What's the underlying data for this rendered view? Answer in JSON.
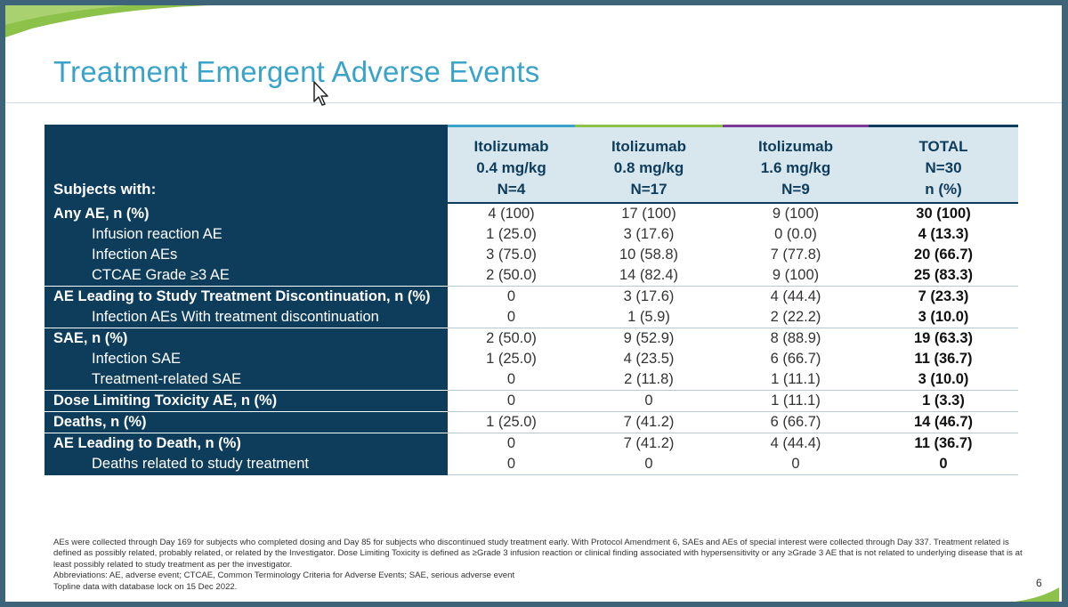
{
  "slide": {
    "title": "Treatment Emergent Adverse Events",
    "page_number": "6"
  },
  "table": {
    "header": {
      "label": "Subjects with:",
      "columns": [
        {
          "line1": "Itolizumab",
          "line2": "0.4 mg/kg",
          "line3": "N=4"
        },
        {
          "line1": "Itolizumab",
          "line2": "0.8 mg/kg",
          "line3": "N=17"
        },
        {
          "line1": "Itolizumab",
          "line2": "1.6 mg/kg",
          "line3": "N=9"
        },
        {
          "line1": "TOTAL",
          "line2": "N=30",
          "line3": "n (%)"
        }
      ]
    },
    "rows": [
      {
        "label": "Any AE, n (%)",
        "values": [
          "4 (100)",
          "17 (100)",
          "9 (100)",
          "30 (100)"
        ]
      },
      {
        "label": "Infusion reaction AE",
        "values": [
          "1 (25.0)",
          "3 (17.6)",
          "0 (0.0)",
          "4 (13.3)"
        ]
      },
      {
        "label": "Infection AEs",
        "values": [
          "3 (75.0)",
          "10 (58.8)",
          "7 (77.8)",
          "20 (66.7)"
        ]
      },
      {
        "label": "CTCAE Grade ≥3 AE",
        "values": [
          "2 (50.0)",
          "14 (82.4)",
          "9 (100)",
          "25 (83.3)"
        ]
      },
      {
        "label": "AE Leading to Study Treatment Discontinuation, n (%)",
        "values": [
          "0",
          "3 (17.6)",
          "4 (44.4)",
          "7 (23.3)"
        ]
      },
      {
        "label": "Infection AEs With treatment discontinuation",
        "values": [
          "0",
          "1 (5.9)",
          "2 (22.2)",
          "3 (10.0)"
        ]
      },
      {
        "label": "SAE, n (%)",
        "values": [
          "2 (50.0)",
          "9 (52.9)",
          "8 (88.9)",
          "19 (63.3)"
        ]
      },
      {
        "label": "Infection SAE",
        "values": [
          "1 (25.0)",
          "4 (23.5)",
          "6 (66.7)",
          "11 (36.7)"
        ]
      },
      {
        "label": "Treatment-related SAE",
        "values": [
          "0",
          "2 (11.8)",
          "1 (11.1)",
          "3 (10.0)"
        ]
      },
      {
        "label": "Dose Limiting Toxicity AE, n (%)",
        "values": [
          "0",
          "0",
          "1 (11.1)",
          "1 (3.3)"
        ]
      },
      {
        "label": "Deaths, n (%)",
        "values": [
          "1 (25.0)",
          "7 (41.2)",
          "6 (66.7)",
          "14 (46.7)"
        ]
      },
      {
        "label": "AE Leading to Death, n (%)",
        "values": [
          "0",
          "7 (41.2)",
          "4 (44.4)",
          "11 (36.7)"
        ]
      },
      {
        "label": "Deaths related to study treatment",
        "values": [
          "0",
          "0",
          "0",
          "0"
        ]
      }
    ]
  },
  "footnotes": [
    "AEs were collected through Day 169 for subjects who completed dosing and Day 85 for subjects who discontinued study treatment early. With Protocol Amendment 6, SAEs and AEs of special interest were collected through Day 337. Treatment related is defined as possibly related, probably related, or related by the Investigator. Dose Limiting Toxicity is defined as ≥Grade 3 infusion reaction or clinical finding associated with hypersensitivity or any ≥Grade 3 AE that is not related to underlying disease that is at least possibly related to study treatment as per the investigator.",
    "Abbreviations: AE, adverse event; CTCAE, Common Terminology Criteria for Adverse Events;  SAE, serious adverse event",
    "Topline data with database lock on 15 Dec 2022."
  ],
  "colors": {
    "title": "#3aa3c9",
    "label_column": "#0e3d5c",
    "header_fill": "#d8e6ee",
    "accent_dose1": "#3aa3c9",
    "accent_dose2": "#8cc14a",
    "accent_dose3": "#7a3b96"
  }
}
